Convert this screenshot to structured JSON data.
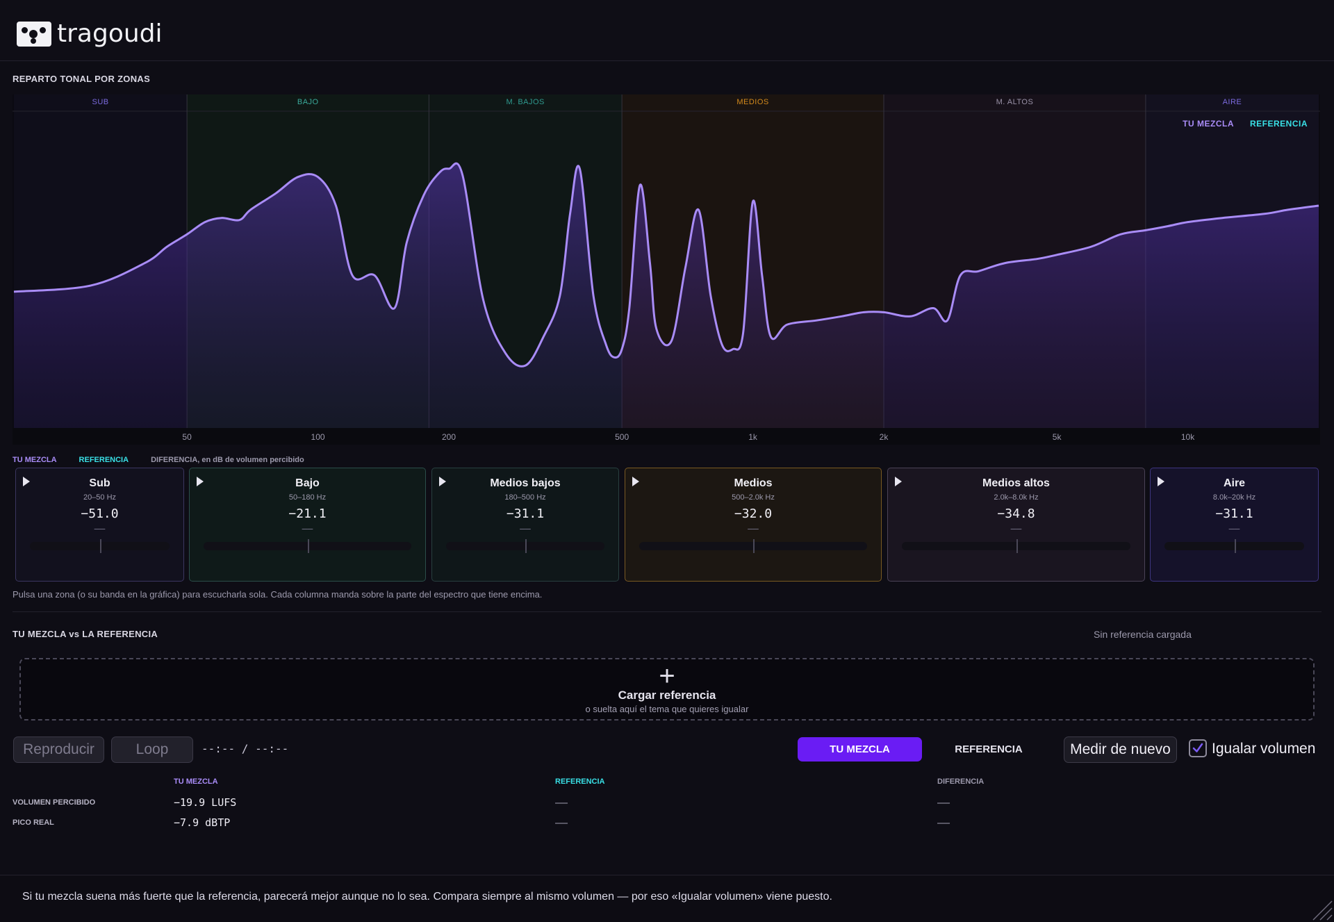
{
  "app": {
    "logo_text": "tragoudi"
  },
  "spectrum": {
    "title": "REPARTO TONAL POR ZONAS",
    "zones": [
      {
        "label": "SUB",
        "color": "#7c6be0"
      },
      {
        "label": "BAJO",
        "color": "#3aa99a"
      },
      {
        "label": "M. BAJOS",
        "color": "#2f9a8f"
      },
      {
        "label": "MEDIOS",
        "color": "#d48a1c"
      },
      {
        "label": "M. ALTOS",
        "color": "#9a92a8"
      },
      {
        "label": "AIRE",
        "color": "#7c6be0"
      }
    ],
    "legend": {
      "mix": "TU MEZCLA",
      "reference": "REFERENCIA"
    },
    "x_ticks": [
      "50",
      "100",
      "200",
      "500",
      "1k",
      "2k",
      "5k",
      "10k"
    ],
    "colors": {
      "mix_line": "#a98cf7",
      "reference": "#39e0e6"
    }
  },
  "chart_data": {
    "type": "area",
    "x_scale": "log",
    "xlim_hz": [
      20,
      20000
    ],
    "ylim": "unlabeled",
    "series": [
      {
        "name": "TU MEZCLA",
        "x": [
          20,
          30,
          40,
          45,
          50,
          55,
          60,
          66,
          70,
          80,
          90,
          100,
          110,
          120,
          135,
          150,
          160,
          175,
          190,
          200,
          215,
          240,
          270,
          300,
          330,
          360,
          380,
          400,
          430,
          460,
          480,
          500,
          520,
          550,
          580,
          600,
          650,
          700,
          750,
          800,
          850,
          900,
          950,
          1000,
          1050,
          1100,
          1200,
          1400,
          1600,
          1800,
          2000,
          2300,
          2600,
          2800,
          3000,
          3300,
          3800,
          4500,
          5000,
          6000,
          7000,
          8000,
          9000,
          10000,
          12000,
          15000,
          17000,
          20000
        ],
        "y": [
          38,
          41,
          52,
          60,
          66,
          72,
          74,
          73,
          78,
          86,
          94,
          94,
          80,
          46,
          46,
          30,
          62,
          85,
          96,
          98,
          95,
          34,
          8,
          2,
          16,
          36,
          76,
          98,
          36,
          12,
          6,
          10,
          30,
          90,
          52,
          20,
          14,
          50,
          78,
          36,
          12,
          10,
          18,
          82,
          46,
          16,
          22,
          24,
          26,
          28,
          28,
          26,
          30,
          24,
          46,
          48,
          52,
          54,
          56,
          60,
          66,
          68,
          70,
          72,
          74,
          76,
          78,
          80
        ]
      }
    ]
  },
  "bands": {
    "legend": {
      "mix": "TU MEZCLA",
      "reference": "REFERENCIA",
      "diff": "DIFERENCIA, en dB de volumen percibido"
    },
    "items": [
      {
        "name": "Sub",
        "range": "20–50 Hz",
        "value": "−51.0",
        "diff": "——",
        "level": 0.5,
        "bg": "#12111e",
        "border": "#3b3660"
      },
      {
        "name": "Bajo",
        "range": "50–180 Hz",
        "value": "−21.1",
        "diff": "——",
        "level": 0.5,
        "bg": "#0f1a19",
        "border": "#2b4e4a"
      },
      {
        "name": "Medios bajos",
        "range": "180–500 Hz",
        "value": "−31.1",
        "diff": "——",
        "level": 0.5,
        "bg": "#0f1719",
        "border": "#283f40"
      },
      {
        "name": "Medios",
        "range": "500–2.0k Hz",
        "value": "−32.0",
        "diff": "——",
        "level": 0.5,
        "bg": "#1c1712",
        "border": "#7a5a22"
      },
      {
        "name": "Medios altos",
        "range": "2.0k–8.0k Hz",
        "value": "−34.8",
        "diff": "——",
        "level": 0.5,
        "bg": "#1a1520",
        "border": "#4a4256"
      },
      {
        "name": "Aire",
        "range": "8.0k–20k Hz",
        "value": "−31.1",
        "diff": "——",
        "level": 0.5,
        "bg": "#15122a",
        "border": "#3e3580"
      }
    ],
    "hint": "Pulsa una zona (o su banda en la gráfica) para escucharla sola. Cada columna manda sobre la parte del espectro que tiene encima."
  },
  "compare": {
    "title": "TU MEZCLA vs LA REFERENCIA",
    "status": "Sin referencia cargada",
    "drop": {
      "icon": "plus-icon",
      "title": "Cargar referencia",
      "subtitle": "o suelta aquí el tema que quieres igualar"
    },
    "controls": {
      "play": "Reproducir",
      "loop": "Loop",
      "time": "--:-- / --:--",
      "mix_toggle": "TU MEZCLA",
      "ref_toggle": "REFERENCIA",
      "remeasure": "Medir de nuevo",
      "match_volume": "Igualar volumen",
      "match_volume_checked": true
    },
    "table": {
      "headers": {
        "mix": "TU MEZCLA",
        "reference": "REFERENCIA",
        "diff": "DIFERENCIA"
      },
      "rows": [
        {
          "label": "VOLUMEN PERCIBIDO",
          "mix": "−19.9 LUFS",
          "reference": "——",
          "diff": "——"
        },
        {
          "label": "PICO REAL",
          "mix": "−7.9 dBTP",
          "reference": "——",
          "diff": "——"
        }
      ]
    }
  },
  "footer": {
    "text": "Si tu mezcla suena más fuerte que la referencia, parecerá mejor aunque no lo sea. Compara siempre al mismo volumen — por eso «Igualar volumen» viene puesto."
  }
}
